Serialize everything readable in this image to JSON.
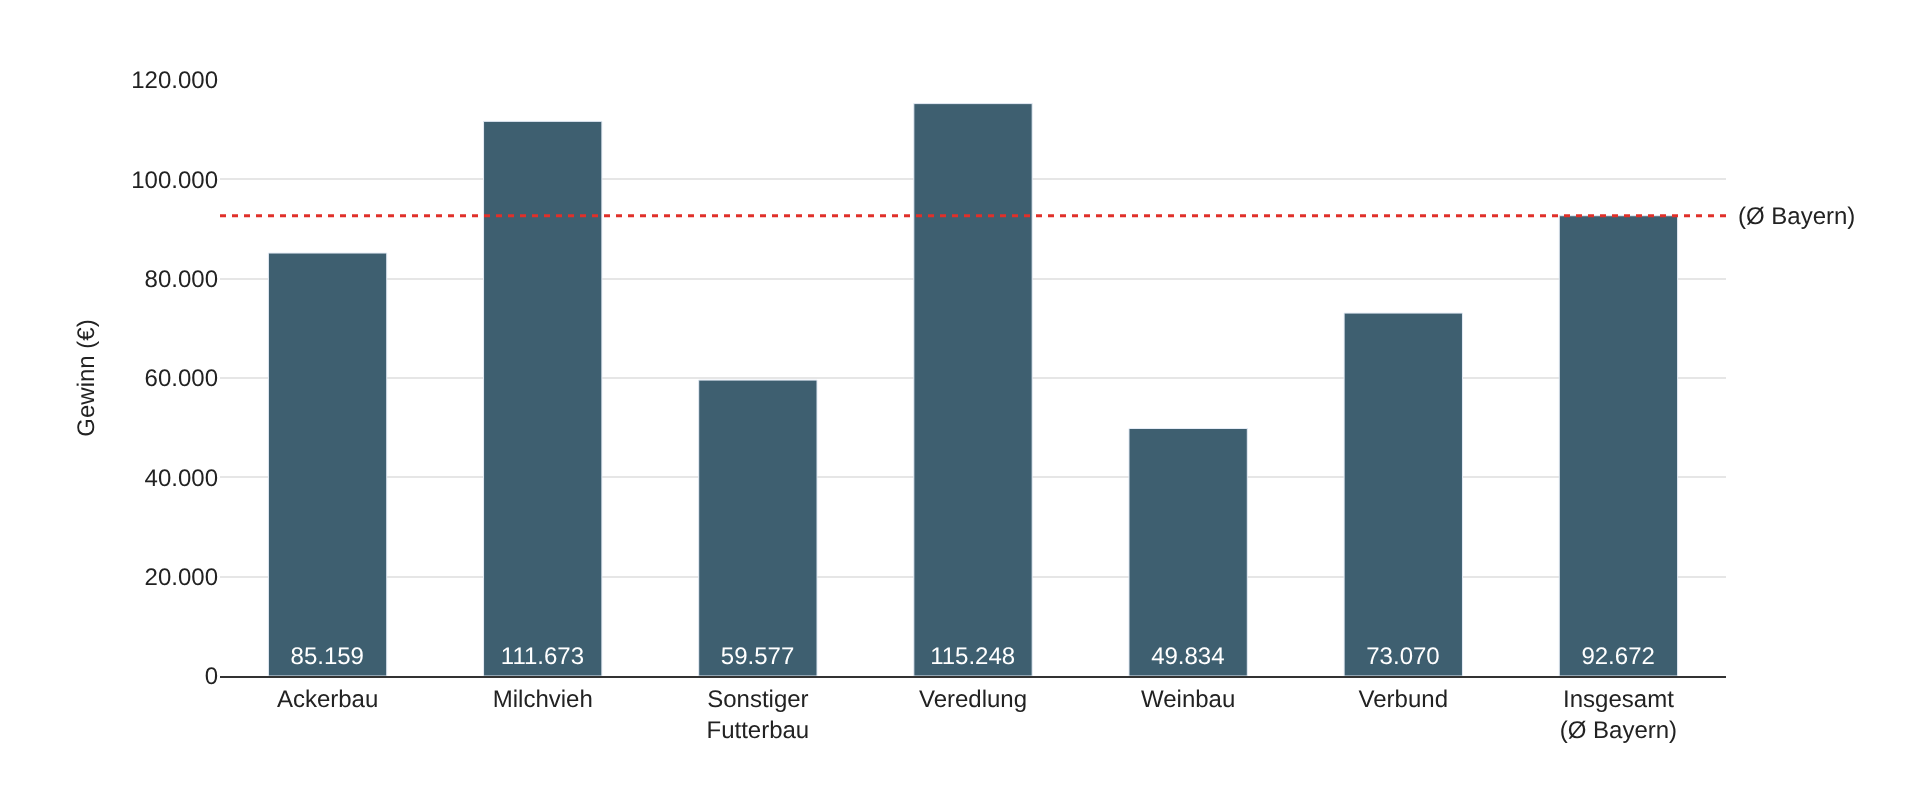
{
  "chart_data": {
    "type": "bar",
    "ylabel": "Gewinn (€)",
    "categories": [
      "Ackerbau",
      "Milchvieh",
      "Sonstiger\nFutterbau",
      "Veredlung",
      "Weinbau",
      "Verbund",
      "Insgesamt\n(Ø Bayern)"
    ],
    "values": [
      85159,
      111673,
      59577,
      115248,
      49834,
      73070,
      92672
    ],
    "value_labels": [
      "85.159",
      "111.673",
      "59.577",
      "115.248",
      "49.834",
      "73.070",
      "92.672"
    ],
    "color": "#3e5f70",
    "ylim": [
      0,
      120000
    ],
    "yticks": [
      {
        "value": 0,
        "label": "0"
      },
      {
        "value": 20000,
        "label": "20.000"
      },
      {
        "value": 40000,
        "label": "40.000"
      },
      {
        "value": 60000,
        "label": "60.000"
      },
      {
        "value": 80000,
        "label": "80.000"
      },
      {
        "value": 100000,
        "label": "100.000"
      },
      {
        "value": 120000,
        "label": "120.000"
      }
    ],
    "ref_lines": [
      {
        "axis": "y",
        "value": 92672,
        "label": "(Ø Bayern)",
        "color": "#e0302a",
        "line_style": "dotted"
      }
    ],
    "grid": "y"
  }
}
